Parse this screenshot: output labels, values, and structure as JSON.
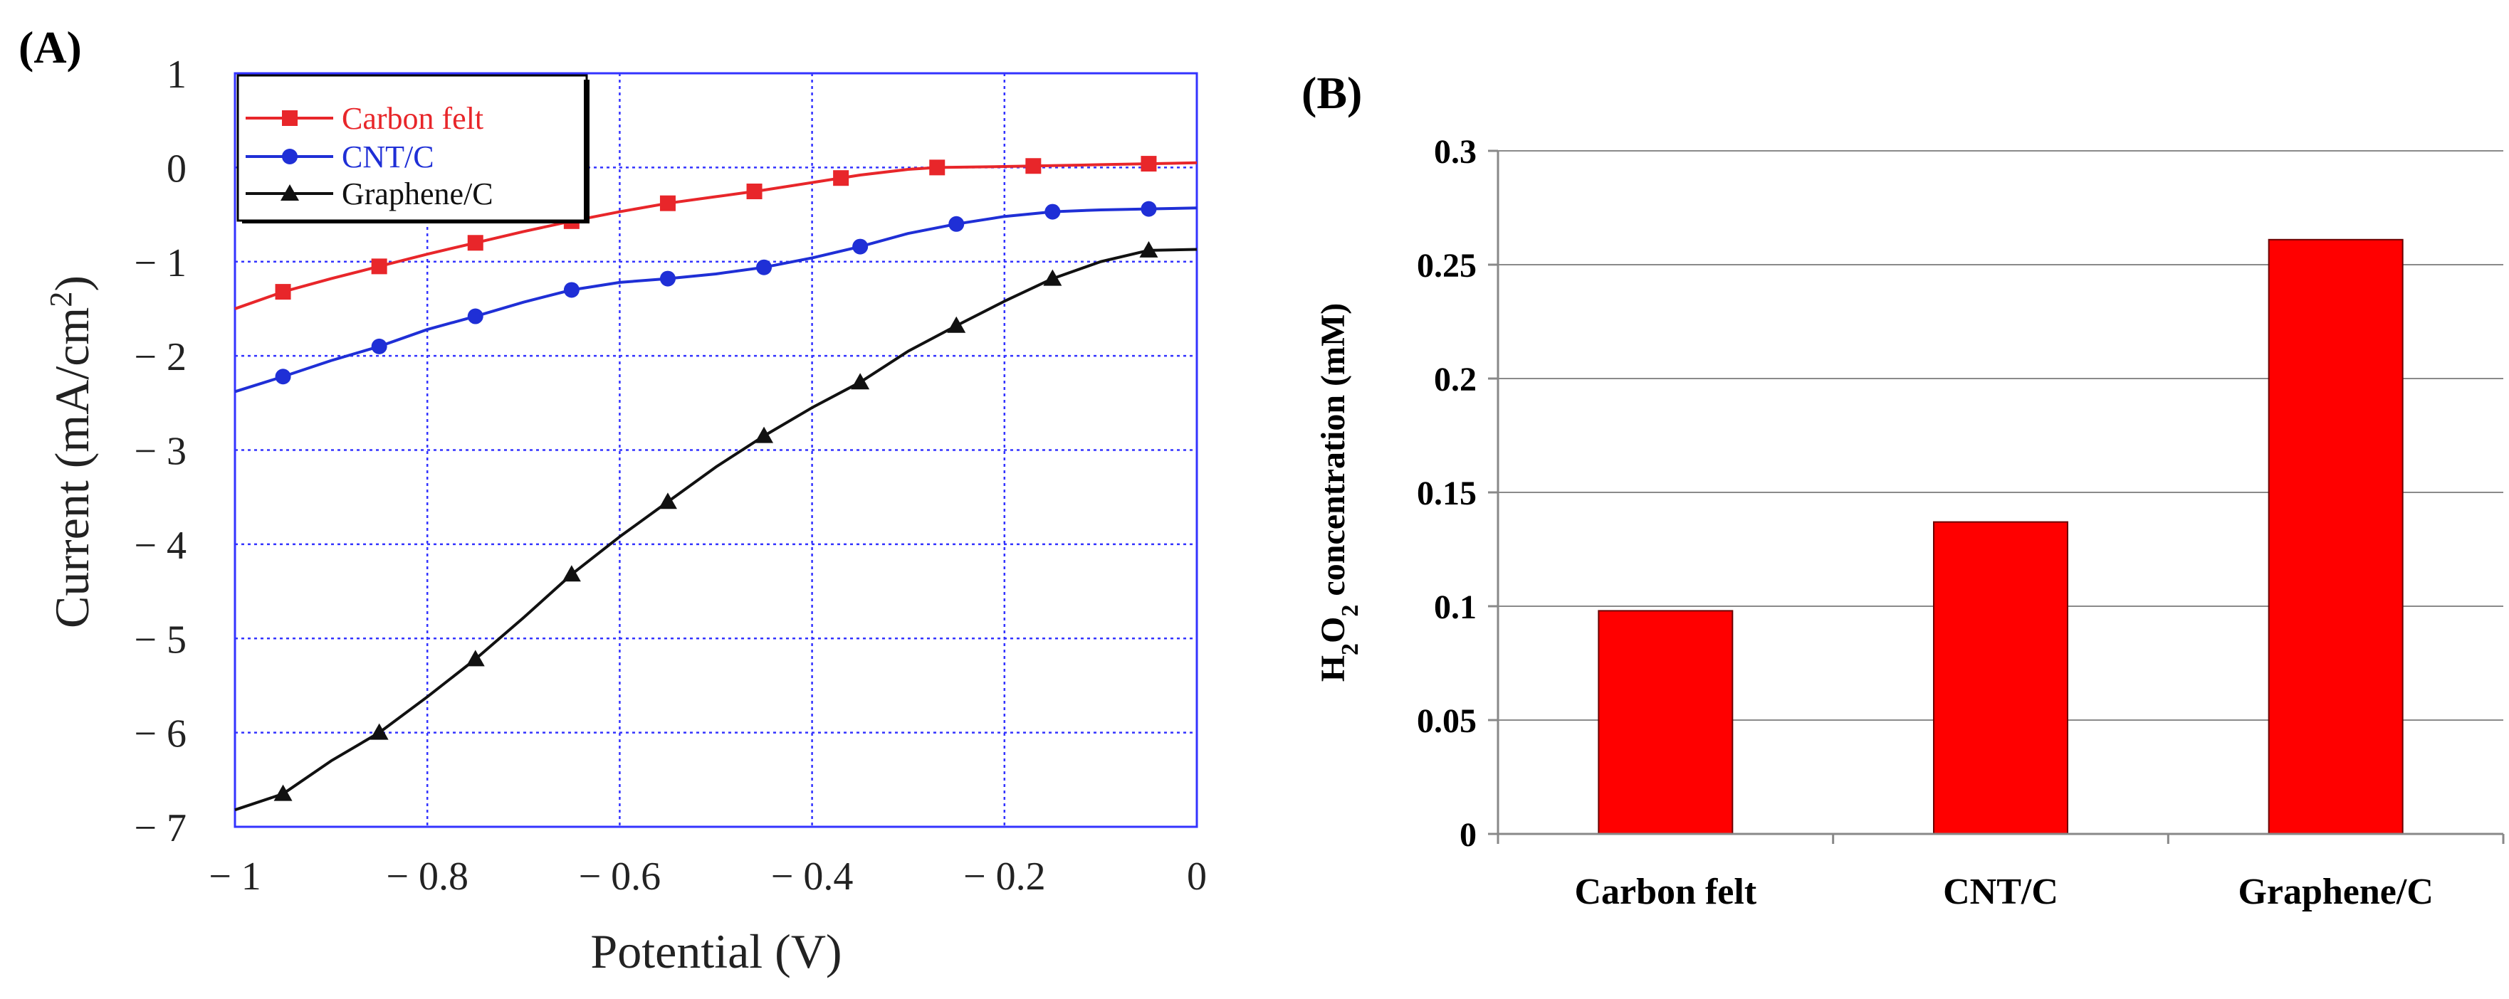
{
  "panel_a": {
    "label": "(A)",
    "chart_data": {
      "type": "line",
      "xlabel": "Potential (V)",
      "ylabel_main": "Current (mA/cm",
      "ylabel_sup": "2",
      "ylabel_close": ")",
      "xlim": [
        -1,
        0
      ],
      "ylim": [
        -7,
        1
      ],
      "grid": true,
      "x_ticks": [
        -1,
        -0.8,
        -0.6,
        -0.4,
        -0.2,
        0
      ],
      "x_tick_labels": [
        "− 1",
        "− 0.8",
        "− 0.6",
        "− 0.4",
        "− 0.2",
        "0"
      ],
      "y_ticks": [
        1,
        0,
        -1,
        -2,
        -3,
        -4,
        -5,
        -6,
        -7
      ],
      "y_tick_labels": [
        "1",
        "0",
        "− 1",
        "− 2",
        "− 3",
        "− 4",
        "− 5",
        "− 6",
        "− 7"
      ],
      "legend_position": "top-left",
      "series": [
        {
          "name": "Carbon felt",
          "color": "#e8262a",
          "marker": "square",
          "x": [
            -1.0,
            -0.95,
            -0.9,
            -0.85,
            -0.8,
            -0.75,
            -0.7,
            -0.65,
            -0.6,
            -0.55,
            -0.5,
            -0.45,
            -0.4,
            -0.35,
            -0.3,
            -0.27,
            -0.2,
            -0.15,
            -0.1,
            -0.05,
            0.0
          ],
          "y": [
            -1.5,
            -1.32,
            -1.18,
            -1.05,
            -0.92,
            -0.8,
            -0.68,
            -0.57,
            -0.47,
            -0.38,
            -0.31,
            -0.24,
            -0.16,
            -0.08,
            -0.02,
            0.0,
            0.01,
            0.02,
            0.03,
            0.04,
            0.05
          ],
          "marker_x": [
            -0.95,
            -0.85,
            -0.75,
            -0.65,
            -0.55,
            -0.46,
            -0.37,
            -0.27,
            -0.17,
            -0.05
          ]
        },
        {
          "name": "CNT/C",
          "color": "#1f2fd6",
          "marker": "circle",
          "x": [
            -1.0,
            -0.95,
            -0.9,
            -0.85,
            -0.8,
            -0.75,
            -0.7,
            -0.65,
            -0.6,
            -0.55,
            -0.5,
            -0.45,
            -0.4,
            -0.35,
            -0.3,
            -0.25,
            -0.2,
            -0.15,
            -0.1,
            -0.05,
            0.0
          ],
          "y": [
            -2.38,
            -2.22,
            -2.05,
            -1.9,
            -1.72,
            -1.58,
            -1.43,
            -1.3,
            -1.22,
            -1.18,
            -1.13,
            -1.06,
            -0.96,
            -0.84,
            -0.7,
            -0.6,
            -0.52,
            -0.47,
            -0.45,
            -0.44,
            -0.43
          ],
          "marker_x": [
            -0.95,
            -0.85,
            -0.75,
            -0.65,
            -0.55,
            -0.45,
            -0.35,
            -0.25,
            -0.15,
            -0.05
          ]
        },
        {
          "name": "Graphene/C",
          "color": "#111111",
          "marker": "triangle",
          "x": [
            -1.0,
            -0.95,
            -0.9,
            -0.85,
            -0.8,
            -0.75,
            -0.7,
            -0.65,
            -0.6,
            -0.55,
            -0.5,
            -0.45,
            -0.4,
            -0.35,
            -0.3,
            -0.25,
            -0.2,
            -0.15,
            -0.1,
            -0.05,
            0.0
          ],
          "y": [
            -6.82,
            -6.65,
            -6.3,
            -6.0,
            -5.62,
            -5.22,
            -4.78,
            -4.32,
            -3.92,
            -3.55,
            -3.18,
            -2.85,
            -2.55,
            -2.28,
            -1.95,
            -1.68,
            -1.42,
            -1.18,
            -1.0,
            -0.88,
            -0.87
          ],
          "marker_x": [
            -0.95,
            -0.85,
            -0.75,
            -0.65,
            -0.55,
            -0.45,
            -0.35,
            -0.25,
            -0.15,
            -0.05
          ]
        }
      ]
    }
  },
  "panel_b": {
    "label": "(B)",
    "chart_data": {
      "type": "bar",
      "categories": [
        "Carbon felt",
        "CNT/C",
        "Graphene/C"
      ],
      "values": [
        0.098,
        0.137,
        0.261
      ],
      "ylabel_pre": "H",
      "ylabel_sub1": "2",
      "ylabel_mid": "O",
      "ylabel_sub2": "2",
      "ylabel_post": " concentration  (mM)",
      "ylim": [
        0,
        0.3
      ],
      "y_ticks": [
        0,
        0.05,
        0.1,
        0.15,
        0.2,
        0.25,
        0.3
      ],
      "y_tick_labels": [
        "0",
        "0.05",
        "0.1",
        "0.15",
        "0.2",
        "0.25",
        "0.3"
      ],
      "bar_color": "#ff0000",
      "grid": true
    }
  }
}
